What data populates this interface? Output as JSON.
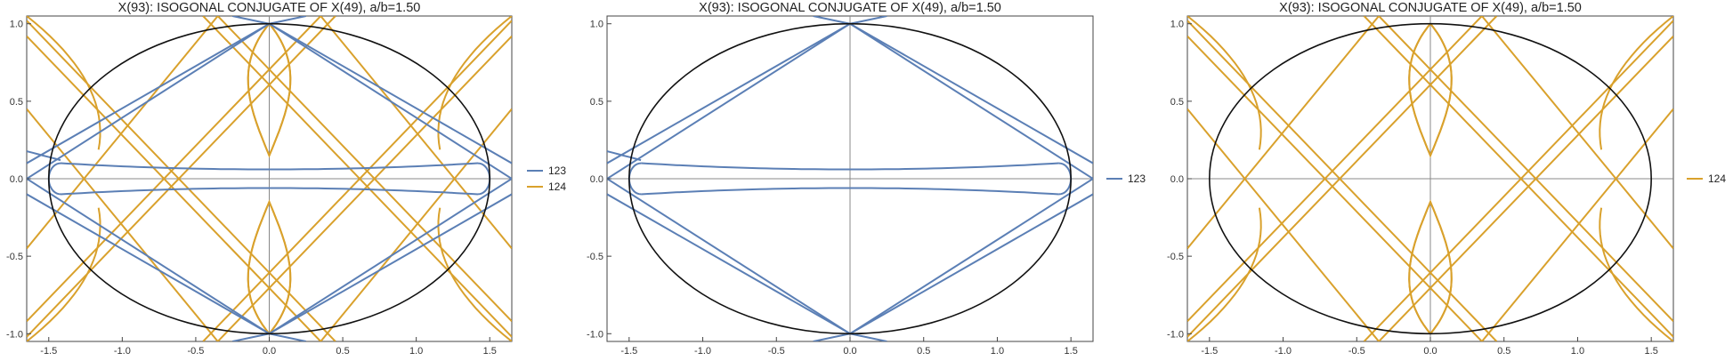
{
  "colors": {
    "c123": "#5b7fb5",
    "c124": "#d9a12c",
    "ellipse": "#111111",
    "axis": "#888888",
    "frame": "#444444"
  },
  "chart_data": [
    {
      "type": "line",
      "title": "X(93): ISOGONAL CONJUGATE OF X(49), a/b=1.50",
      "xlim": [
        -1.65,
        1.65
      ],
      "ylim": [
        -1.05,
        1.05
      ],
      "xticks": [
        "-1.5",
        "-1.0",
        "-0.5",
        "0.0",
        "0.5",
        "1.0",
        "1.5"
      ],
      "yticks": [
        "-1.0",
        "-0.5",
        "0.0",
        "0.5",
        "1.0"
      ],
      "xtick_values": [
        -1.5,
        -1.0,
        -0.5,
        0.0,
        0.5,
        1.0,
        1.5
      ],
      "ytick_values": [
        -1.0,
        -0.5,
        0.0,
        0.5,
        1.0
      ],
      "series": [
        {
          "name": "123",
          "color": "#5b7fb5"
        },
        {
          "name": "124",
          "color": "#d9a12c"
        }
      ],
      "ellipse": {
        "a": 1.5,
        "b": 1.0
      },
      "legend": "right"
    },
    {
      "type": "line",
      "title": "X(93): ISOGONAL CONJUGATE OF X(49), a/b=1.50",
      "xlim": [
        -1.65,
        1.65
      ],
      "ylim": [
        -1.05,
        1.05
      ],
      "xticks": [
        "-1.5",
        "-1.0",
        "-0.5",
        "0.0",
        "0.5",
        "1.0",
        "1.5"
      ],
      "yticks": [
        "-1.0",
        "-0.5",
        "0.0",
        "0.5",
        "1.0"
      ],
      "xtick_values": [
        -1.5,
        -1.0,
        -0.5,
        0.0,
        0.5,
        1.0,
        1.5
      ],
      "ytick_values": [
        -1.0,
        -0.5,
        0.0,
        0.5,
        1.0
      ],
      "series": [
        {
          "name": "123",
          "color": "#5b7fb5"
        }
      ],
      "ellipse": {
        "a": 1.5,
        "b": 1.0
      },
      "legend": "right"
    },
    {
      "type": "line",
      "title": "X(93): ISOGONAL CONJUGATE OF X(49), a/b=1.50",
      "xlim": [
        -1.65,
        1.65
      ],
      "ylim": [
        -1.05,
        1.05
      ],
      "xticks": [
        "-1.5",
        "-1.0",
        "-0.5",
        "0.0",
        "0.5",
        "1.0",
        "1.5"
      ],
      "yticks": [
        "-1.0",
        "-0.5",
        "0.0",
        "0.5",
        "1.0"
      ],
      "xtick_values": [
        -1.5,
        -1.0,
        -0.5,
        0.0,
        0.5,
        1.0,
        1.5
      ],
      "ytick_values": [
        -1.0,
        -0.5,
        0.0,
        0.5,
        1.0
      ],
      "series": [
        {
          "name": "124",
          "color": "#d9a12c"
        }
      ],
      "ellipse": {
        "a": 1.5,
        "b": 1.0
      },
      "legend": "right"
    }
  ]
}
